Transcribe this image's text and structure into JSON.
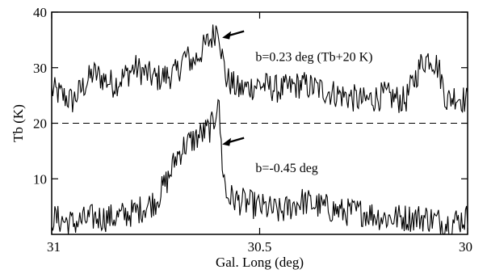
{
  "chart_data": {
    "type": "line",
    "xlabel": "Gal. Long (deg)",
    "ylabel": "Tb (K)",
    "xlim": [
      31,
      30
    ],
    "ylim": [
      0,
      40
    ],
    "x_reversed": true,
    "xticks": [
      {
        "value": 31,
        "label": "31"
      },
      {
        "value": 30.5,
        "label": "30.5"
      },
      {
        "value": 30,
        "label": "30"
      }
    ],
    "yticks": [
      {
        "value": 10,
        "label": "10"
      },
      {
        "value": 20,
        "label": "20"
      },
      {
        "value": 30,
        "label": "30"
      },
      {
        "value": 40,
        "label": "40"
      }
    ],
    "reference_line": {
      "y": 20,
      "style": "dashed"
    },
    "series": [
      {
        "x": [
          31.0,
          30.95,
          30.9,
          30.85,
          30.8,
          30.75,
          30.7,
          30.68,
          30.66,
          30.64,
          30.62,
          30.61,
          30.6,
          30.59,
          30.58,
          30.55,
          30.5,
          30.45,
          30.4,
          30.35,
          30.3,
          30.25,
          30.2,
          30.15,
          30.11,
          30.09,
          30.07,
          30.05,
          30.03,
          30.0
        ],
        "y": [
          26,
          24,
          29,
          27,
          30,
          28,
          29,
          32,
          31,
          33,
          35,
          36,
          38,
          32,
          28,
          26,
          27,
          26,
          27,
          26,
          25,
          24,
          25,
          24,
          31,
          32,
          30,
          24,
          25,
          24
        ]
      },
      {
        "x": [
          31.0,
          30.95,
          30.9,
          30.85,
          30.8,
          30.75,
          30.72,
          30.7,
          30.68,
          30.66,
          30.64,
          30.62,
          30.61,
          30.6,
          30.59,
          30.58,
          30.55,
          30.5,
          30.45,
          30.4,
          30.35,
          30.3,
          30.25,
          30.2,
          30.15,
          30.1,
          30.05,
          30.0
        ],
        "y": [
          3,
          2,
          3,
          3,
          4,
          6,
          10,
          14,
          16,
          17,
          18,
          19,
          20,
          25,
          13,
          7,
          6,
          5,
          4,
          6,
          5,
          4,
          4,
          3,
          3,
          3,
          2,
          3
        ]
      }
    ],
    "annotations": [
      {
        "text": "b=0.23 deg (Tb+20 K)",
        "x": 30.51,
        "y": 31.2,
        "arrow_tip_x": 30.59,
        "arrow_tip_y": 35.4
      },
      {
        "text": "b=-0.45 deg",
        "x": 30.51,
        "y": 11.2,
        "arrow_tip_x": 30.59,
        "arrow_tip_y": 16.2
      }
    ]
  }
}
